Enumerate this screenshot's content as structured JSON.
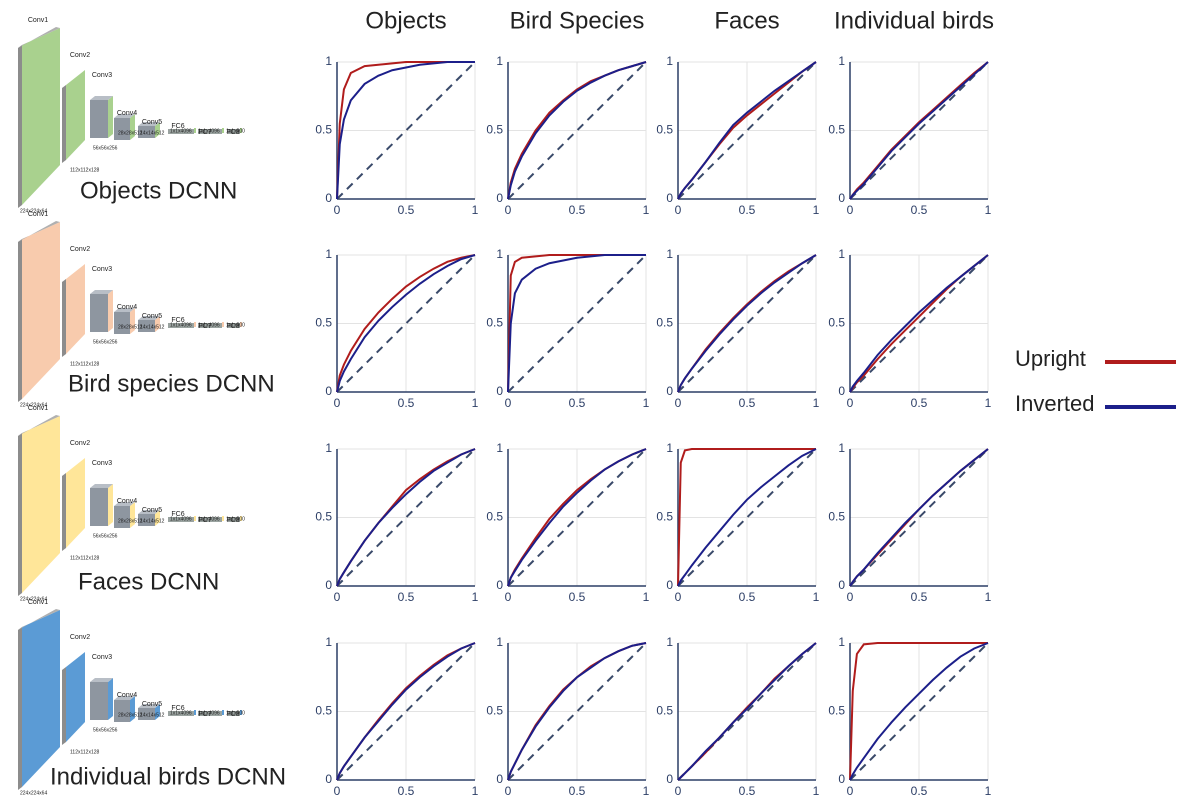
{
  "column_titles": [
    "Objects",
    "Bird Species",
    "Faces",
    "Individual birds"
  ],
  "network_layers": [
    "Conv1",
    "Conv2",
    "Conv3",
    "Conv4",
    "Conv5",
    "FC6",
    "FC7",
    "FC8"
  ],
  "network_sizes": [
    "224x224x64",
    "112x112x128",
    "56x56x256",
    "28x28x512",
    "14x14x512",
    "1x1x4096",
    "1x1x4096",
    "1x1x500"
  ],
  "networks": [
    {
      "label": "Objects DCNN",
      "color": "#a9d18e"
    },
    {
      "label": "Bird species DCNN",
      "color": "#f8cbad"
    },
    {
      "label": "Faces DCNN",
      "color": "#ffe699"
    },
    {
      "label": "Individual birds DCNN",
      "color": "#5b9bd5"
    }
  ],
  "chart_data": [
    {
      "type": "line",
      "x": [
        0,
        0.02,
        0.05,
        0.1,
        0.2,
        0.3,
        0.4,
        0.5,
        0.6,
        0.7,
        0.8,
        0.9,
        1
      ],
      "xlim": [
        0,
        1
      ],
      "ylim": [
        0,
        1
      ],
      "xticks": [
        0,
        0.5,
        1
      ],
      "yticks": [
        0,
        0.5,
        1
      ],
      "grid": true,
      "series": [
        {
          "name": "Upright",
          "color": "#b01c1c",
          "values": [
            0,
            0.55,
            0.8,
            0.92,
            0.97,
            0.98,
            0.99,
            1,
            1,
            1,
            1,
            1,
            1
          ]
        },
        {
          "name": "Inverted",
          "color": "#1c1f8a",
          "values": [
            0,
            0.4,
            0.58,
            0.72,
            0.84,
            0.9,
            0.94,
            0.96,
            0.98,
            0.99,
            1,
            1,
            1
          ]
        }
      ]
    },
    {
      "type": "line",
      "x": [
        0,
        0.02,
        0.05,
        0.1,
        0.2,
        0.3,
        0.4,
        0.5,
        0.6,
        0.7,
        0.8,
        0.9,
        1
      ],
      "xlim": [
        0,
        1
      ],
      "ylim": [
        0,
        1
      ],
      "xticks": [
        0,
        0.5,
        1
      ],
      "yticks": [
        0,
        0.5,
        1
      ],
      "grid": true,
      "series": [
        {
          "name": "Upright",
          "color": "#b01c1c",
          "values": [
            0,
            0.12,
            0.22,
            0.33,
            0.5,
            0.63,
            0.72,
            0.8,
            0.86,
            0.9,
            0.94,
            0.97,
            1
          ]
        },
        {
          "name": "Inverted",
          "color": "#1c1f8a",
          "values": [
            0,
            0.1,
            0.2,
            0.31,
            0.48,
            0.61,
            0.71,
            0.79,
            0.85,
            0.9,
            0.94,
            0.97,
            1
          ]
        }
      ]
    },
    {
      "type": "line",
      "x": [
        0,
        0.02,
        0.05,
        0.1,
        0.2,
        0.3,
        0.4,
        0.5,
        0.6,
        0.7,
        0.8,
        0.9,
        1
      ],
      "xlim": [
        0,
        1
      ],
      "ylim": [
        0,
        1
      ],
      "xticks": [
        0,
        0.5,
        1
      ],
      "yticks": [
        0,
        0.5,
        1
      ],
      "grid": true,
      "series": [
        {
          "name": "Upright",
          "color": "#b01c1c",
          "values": [
            0,
            0.04,
            0.08,
            0.14,
            0.27,
            0.4,
            0.52,
            0.61,
            0.69,
            0.77,
            0.85,
            0.93,
            1
          ]
        },
        {
          "name": "Inverted",
          "color": "#1c1f8a",
          "values": [
            0,
            0.04,
            0.08,
            0.14,
            0.27,
            0.41,
            0.54,
            0.63,
            0.71,
            0.79,
            0.86,
            0.93,
            1
          ]
        }
      ]
    },
    {
      "type": "line",
      "x": [
        0,
        0.02,
        0.05,
        0.1,
        0.2,
        0.3,
        0.4,
        0.5,
        0.6,
        0.7,
        0.8,
        0.9,
        1
      ],
      "xlim": [
        0,
        1
      ],
      "ylim": [
        0,
        1
      ],
      "xticks": [
        0,
        0.5,
        1
      ],
      "yticks": [
        0,
        0.5,
        1
      ],
      "grid": true,
      "series": [
        {
          "name": "Upright",
          "color": "#b01c1c",
          "values": [
            0,
            0.03,
            0.07,
            0.12,
            0.24,
            0.36,
            0.46,
            0.56,
            0.65,
            0.74,
            0.83,
            0.92,
            1
          ]
        },
        {
          "name": "Inverted",
          "color": "#1c1f8a",
          "values": [
            0,
            0.03,
            0.06,
            0.11,
            0.23,
            0.35,
            0.45,
            0.55,
            0.64,
            0.73,
            0.82,
            0.91,
            1
          ]
        }
      ]
    },
    {
      "type": "line",
      "x": [
        0,
        0.02,
        0.05,
        0.1,
        0.2,
        0.3,
        0.4,
        0.5,
        0.6,
        0.7,
        0.8,
        0.9,
        1
      ],
      "xlim": [
        0,
        1
      ],
      "ylim": [
        0,
        1
      ],
      "xticks": [
        0,
        0.5,
        1
      ],
      "yticks": [
        0,
        0.5,
        1
      ],
      "grid": true,
      "series": [
        {
          "name": "Upright",
          "color": "#b01c1c",
          "values": [
            0,
            0.12,
            0.2,
            0.3,
            0.46,
            0.58,
            0.68,
            0.77,
            0.84,
            0.9,
            0.95,
            0.98,
            1
          ]
        },
        {
          "name": "Inverted",
          "color": "#1c1f8a",
          "values": [
            0,
            0.08,
            0.15,
            0.24,
            0.4,
            0.52,
            0.62,
            0.71,
            0.79,
            0.86,
            0.92,
            0.97,
            1
          ]
        }
      ]
    },
    {
      "type": "line",
      "x": [
        0,
        0.02,
        0.05,
        0.1,
        0.2,
        0.3,
        0.4,
        0.5,
        0.6,
        0.7,
        0.8,
        0.9,
        1
      ],
      "xlim": [
        0,
        1
      ],
      "ylim": [
        0,
        1
      ],
      "xticks": [
        0,
        0.5,
        1
      ],
      "yticks": [
        0,
        0.5,
        1
      ],
      "grid": true,
      "series": [
        {
          "name": "Upright",
          "color": "#b01c1c",
          "values": [
            0,
            0.85,
            0.95,
            0.98,
            0.99,
            1,
            1,
            1,
            1,
            1,
            1,
            1,
            1
          ]
        },
        {
          "name": "Inverted",
          "color": "#1c1f8a",
          "values": [
            0,
            0.5,
            0.72,
            0.82,
            0.9,
            0.94,
            0.96,
            0.98,
            0.99,
            1,
            1,
            1,
            1
          ]
        }
      ]
    },
    {
      "type": "line",
      "x": [
        0,
        0.02,
        0.05,
        0.1,
        0.2,
        0.3,
        0.4,
        0.5,
        0.6,
        0.7,
        0.8,
        0.9,
        1
      ],
      "xlim": [
        0,
        1
      ],
      "ylim": [
        0,
        1
      ],
      "xticks": [
        0,
        0.5,
        1
      ],
      "yticks": [
        0,
        0.5,
        1
      ],
      "grid": true,
      "series": [
        {
          "name": "Upright",
          "color": "#b01c1c",
          "values": [
            0,
            0.05,
            0.1,
            0.17,
            0.31,
            0.43,
            0.54,
            0.64,
            0.73,
            0.81,
            0.88,
            0.94,
            1
          ]
        },
        {
          "name": "Inverted",
          "color": "#1c1f8a",
          "values": [
            0,
            0.05,
            0.1,
            0.17,
            0.3,
            0.42,
            0.53,
            0.63,
            0.72,
            0.8,
            0.87,
            0.94,
            1
          ]
        }
      ]
    },
    {
      "type": "line",
      "x": [
        0,
        0.02,
        0.05,
        0.1,
        0.2,
        0.3,
        0.4,
        0.5,
        0.6,
        0.7,
        0.8,
        0.9,
        1
      ],
      "xlim": [
        0,
        1
      ],
      "ylim": [
        0,
        1
      ],
      "xticks": [
        0,
        0.5,
        1
      ],
      "yticks": [
        0,
        0.5,
        1
      ],
      "grid": true,
      "series": [
        {
          "name": "Upright",
          "color": "#b01c1c",
          "values": [
            0,
            0.03,
            0.07,
            0.12,
            0.24,
            0.35,
            0.45,
            0.55,
            0.65,
            0.75,
            0.84,
            0.92,
            1
          ]
        },
        {
          "name": "Inverted",
          "color": "#1c1f8a",
          "values": [
            0,
            0.04,
            0.08,
            0.14,
            0.27,
            0.38,
            0.48,
            0.58,
            0.67,
            0.76,
            0.84,
            0.92,
            1
          ]
        }
      ]
    },
    {
      "type": "line",
      "x": [
        0,
        0.02,
        0.05,
        0.1,
        0.2,
        0.3,
        0.4,
        0.5,
        0.6,
        0.7,
        0.8,
        0.9,
        1
      ],
      "xlim": [
        0,
        1
      ],
      "ylim": [
        0,
        1
      ],
      "xticks": [
        0,
        0.5,
        1
      ],
      "yticks": [
        0,
        0.5,
        1
      ],
      "grid": true,
      "series": [
        {
          "name": "Upright",
          "color": "#b01c1c",
          "values": [
            0,
            0.05,
            0.1,
            0.18,
            0.33,
            0.46,
            0.58,
            0.7,
            0.78,
            0.85,
            0.91,
            0.96,
            1
          ]
        },
        {
          "name": "Inverted",
          "color": "#1c1f8a",
          "values": [
            0,
            0.05,
            0.1,
            0.18,
            0.33,
            0.46,
            0.57,
            0.67,
            0.76,
            0.84,
            0.9,
            0.96,
            1
          ]
        }
      ]
    },
    {
      "type": "line",
      "x": [
        0,
        0.02,
        0.05,
        0.1,
        0.2,
        0.3,
        0.4,
        0.5,
        0.6,
        0.7,
        0.8,
        0.9,
        1
      ],
      "xlim": [
        0,
        1
      ],
      "ylim": [
        0,
        1
      ],
      "xticks": [
        0,
        0.5,
        1
      ],
      "yticks": [
        0,
        0.5,
        1
      ],
      "grid": true,
      "series": [
        {
          "name": "Upright",
          "color": "#b01c1c",
          "values": [
            0,
            0.06,
            0.12,
            0.2,
            0.35,
            0.49,
            0.6,
            0.7,
            0.78,
            0.85,
            0.91,
            0.96,
            1
          ]
        },
        {
          "name": "Inverted",
          "color": "#1c1f8a",
          "values": [
            0,
            0.06,
            0.11,
            0.19,
            0.33,
            0.46,
            0.58,
            0.68,
            0.77,
            0.85,
            0.91,
            0.96,
            1
          ]
        }
      ]
    },
    {
      "type": "line",
      "x": [
        0,
        0.02,
        0.05,
        0.1,
        0.2,
        0.3,
        0.4,
        0.5,
        0.6,
        0.7,
        0.8,
        0.9,
        1
      ],
      "xlim": [
        0,
        1
      ],
      "ylim": [
        0,
        1
      ],
      "xticks": [
        0,
        0.5,
        1
      ],
      "yticks": [
        0,
        0.5,
        1
      ],
      "grid": true,
      "series": [
        {
          "name": "Upright",
          "color": "#b01c1c",
          "values": [
            0,
            0.9,
            0.99,
            1,
            1,
            1,
            1,
            1,
            1,
            1,
            1,
            1,
            1
          ]
        },
        {
          "name": "Inverted",
          "color": "#1c1f8a",
          "values": [
            0,
            0.04,
            0.08,
            0.15,
            0.28,
            0.4,
            0.52,
            0.63,
            0.72,
            0.8,
            0.88,
            0.95,
            1
          ]
        }
      ]
    },
    {
      "type": "line",
      "x": [
        0,
        0.02,
        0.05,
        0.1,
        0.2,
        0.3,
        0.4,
        0.5,
        0.6,
        0.7,
        0.8,
        0.9,
        1
      ],
      "xlim": [
        0,
        1
      ],
      "ylim": [
        0,
        1
      ],
      "xticks": [
        0,
        0.5,
        1
      ],
      "yticks": [
        0,
        0.5,
        1
      ],
      "grid": true,
      "series": [
        {
          "name": "Upright",
          "color": "#b01c1c",
          "values": [
            0,
            0.03,
            0.07,
            0.12,
            0.23,
            0.34,
            0.45,
            0.56,
            0.66,
            0.75,
            0.84,
            0.92,
            1
          ]
        },
        {
          "name": "Inverted",
          "color": "#1c1f8a",
          "values": [
            0,
            0.03,
            0.07,
            0.12,
            0.24,
            0.35,
            0.46,
            0.56,
            0.66,
            0.75,
            0.84,
            0.92,
            1
          ]
        }
      ]
    },
    {
      "type": "line",
      "x": [
        0,
        0.02,
        0.05,
        0.1,
        0.2,
        0.3,
        0.4,
        0.5,
        0.6,
        0.7,
        0.8,
        0.9,
        1
      ],
      "xlim": [
        0,
        1
      ],
      "ylim": [
        0,
        1
      ],
      "xticks": [
        0,
        0.5,
        1
      ],
      "yticks": [
        0,
        0.5,
        1
      ],
      "grid": true,
      "series": [
        {
          "name": "Upright",
          "color": "#b01c1c",
          "values": [
            0,
            0.05,
            0.1,
            0.17,
            0.31,
            0.44,
            0.56,
            0.67,
            0.76,
            0.84,
            0.91,
            0.96,
            1
          ]
        },
        {
          "name": "Inverted",
          "color": "#1c1f8a",
          "values": [
            0,
            0.05,
            0.1,
            0.17,
            0.31,
            0.43,
            0.55,
            0.66,
            0.75,
            0.83,
            0.9,
            0.96,
            1
          ]
        }
      ]
    },
    {
      "type": "line",
      "x": [
        0,
        0.02,
        0.05,
        0.1,
        0.2,
        0.3,
        0.4,
        0.5,
        0.6,
        0.7,
        0.8,
        0.9,
        1
      ],
      "xlim": [
        0,
        1
      ],
      "ylim": [
        0,
        1
      ],
      "xticks": [
        0,
        0.5,
        1
      ],
      "yticks": [
        0,
        0.5,
        1
      ],
      "grid": true,
      "series": [
        {
          "name": "Upright",
          "color": "#b01c1c",
          "values": [
            0,
            0.06,
            0.12,
            0.22,
            0.4,
            0.54,
            0.66,
            0.75,
            0.83,
            0.89,
            0.94,
            0.98,
            1
          ]
        },
        {
          "name": "Inverted",
          "color": "#1c1f8a",
          "values": [
            0,
            0.06,
            0.12,
            0.22,
            0.39,
            0.53,
            0.65,
            0.75,
            0.82,
            0.89,
            0.94,
            0.98,
            1
          ]
        }
      ]
    },
    {
      "type": "line",
      "x": [
        0,
        0.02,
        0.05,
        0.1,
        0.2,
        0.3,
        0.4,
        0.5,
        0.6,
        0.7,
        0.8,
        0.9,
        1
      ],
      "xlim": [
        0,
        1
      ],
      "ylim": [
        0,
        1
      ],
      "xticks": [
        0,
        0.5,
        1
      ],
      "yticks": [
        0,
        0.5,
        1
      ],
      "grid": true,
      "series": [
        {
          "name": "Upright",
          "color": "#b01c1c",
          "values": [
            0,
            0.02,
            0.05,
            0.1,
            0.2,
            0.31,
            0.42,
            0.53,
            0.63,
            0.74,
            0.83,
            0.92,
            1
          ]
        },
        {
          "name": "Inverted",
          "color": "#1c1f8a",
          "values": [
            0,
            0.02,
            0.05,
            0.1,
            0.21,
            0.31,
            0.42,
            0.52,
            0.63,
            0.73,
            0.83,
            0.92,
            1
          ]
        }
      ]
    },
    {
      "type": "line",
      "x": [
        0,
        0.02,
        0.05,
        0.1,
        0.2,
        0.3,
        0.4,
        0.5,
        0.6,
        0.7,
        0.8,
        0.9,
        1
      ],
      "xlim": [
        0,
        1
      ],
      "ylim": [
        0,
        1
      ],
      "xticks": [
        0,
        0.5,
        1
      ],
      "yticks": [
        0,
        0.5,
        1
      ],
      "grid": true,
      "series": [
        {
          "name": "Upright",
          "color": "#b01c1c",
          "values": [
            0,
            0.65,
            0.92,
            0.99,
            1,
            1,
            1,
            1,
            1,
            1,
            1,
            1,
            1
          ]
        },
        {
          "name": "Inverted",
          "color": "#1c1f8a",
          "values": [
            0,
            0.04,
            0.09,
            0.16,
            0.3,
            0.42,
            0.53,
            0.63,
            0.73,
            0.82,
            0.9,
            0.96,
            1
          ]
        }
      ]
    }
  ]
}
